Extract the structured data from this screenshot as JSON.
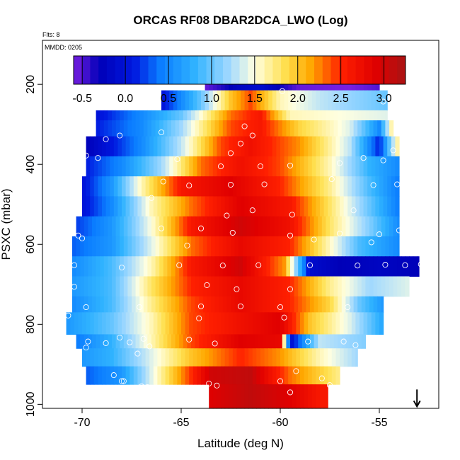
{
  "chart_data": {
    "type": "heatmap",
    "title": "ORCAS RF08 DBAR2DCA_LWO (Log)",
    "flights_note": "Flts: 8",
    "date_note": "MMDD: 0205",
    "xlabel": "Latitude (deg N)",
    "ylabel": "PSXC (mbar)",
    "xlim": [
      -72,
      -52
    ],
    "ylim": [
      1010,
      90
    ],
    "x_ticks": [
      -70,
      -65,
      -60,
      -55
    ],
    "x_tick_labels": [
      "-70",
      "-65",
      "-60",
      "-55"
    ],
    "y_ticks": [
      200,
      400,
      600,
      800,
      1000
    ],
    "y_tick_labels": [
      "200",
      "400",
      "600",
      "800",
      "1000"
    ],
    "colorbar": {
      "range": [
        -0.6,
        3.25
      ],
      "ticks": [
        -0.5,
        0.0,
        0.5,
        1.0,
        1.5,
        2.0,
        2.5,
        3.0
      ],
      "tick_labels": [
        "-0.5",
        "0.0",
        "0.5",
        "1.0",
        "1.5",
        "2.0",
        "2.5",
        "3.0"
      ],
      "gradient": [
        {
          "v": -0.6,
          "color": "#7a1fe0"
        },
        {
          "v": -0.3,
          "color": "#0000b8"
        },
        {
          "v": 0.1,
          "color": "#0018e0"
        },
        {
          "v": 0.4,
          "color": "#0a7cff"
        },
        {
          "v": 0.8,
          "color": "#2fb2ff"
        },
        {
          "v": 1.2,
          "color": "#9fd8ff"
        },
        {
          "v": 1.5,
          "color": "#ffffe0"
        },
        {
          "v": 1.85,
          "color": "#ffe050"
        },
        {
          "v": 2.15,
          "color": "#ffa800"
        },
        {
          "v": 2.5,
          "color": "#ff2000"
        },
        {
          "v": 2.9,
          "color": "#e00000"
        },
        {
          "v": 3.25,
          "color": "#a81414"
        }
      ]
    },
    "rows": [
      {
        "p0": 170,
        "p1": 215,
        "lat0": -63.8,
        "lat1": -55.0,
        "lat_pts": [
          -63.8,
          -62.0,
          -61.0,
          -59.0,
          -56.5,
          -55.0
        ],
        "vals": [
          -0.55,
          -0.2,
          -0.1,
          -0.55,
          -0.6,
          -0.5
        ]
      },
      {
        "p0": 215,
        "p1": 265,
        "lat0": -66.0,
        "lat1": -54.6,
        "lat_pts": [
          -66.0,
          -64.0,
          -62.5,
          -61.5,
          -60.0,
          -58.0,
          -54.6
        ],
        "vals": [
          0.0,
          1.0,
          2.0,
          2.4,
          1.6,
          1.3,
          1.0
        ]
      },
      {
        "p0": 265,
        "p1": 290,
        "lat0": -69.3,
        "lat1": -54.6,
        "lat_pts": [
          -69.3,
          -67.0,
          -65.0,
          -62.5,
          -61.0,
          -59.5,
          -54.6
        ],
        "vals": [
          0.0,
          0.5,
          1.0,
          2.3,
          2.6,
          1.6,
          1.4
        ]
      },
      {
        "p0": 290,
        "p1": 330,
        "lat0": -69.3,
        "lat1": -54.3,
        "lat_pts": [
          -69.3,
          -67.0,
          -65.0,
          -62.5,
          -61.0,
          -59.0,
          -56.5,
          -55.0,
          -54.3
        ],
        "vals": [
          0.1,
          0.5,
          1.2,
          2.4,
          2.6,
          1.9,
          1.4,
          0.5,
          1.8
        ]
      },
      {
        "p0": 330,
        "p1": 380,
        "lat0": -69.8,
        "lat1": -54.0,
        "lat_pts": [
          -69.8,
          -67.0,
          -65.0,
          -63.0,
          -61.5,
          -59.0,
          -56.5,
          -55.0,
          -54.0
        ],
        "vals": [
          -0.3,
          0.5,
          1.3,
          2.4,
          2.7,
          2.2,
          1.3,
          0.1,
          1.8
        ]
      },
      {
        "p0": 380,
        "p1": 430,
        "lat0": -69.8,
        "lat1": -54.0,
        "lat_pts": [
          -69.8,
          -68.0,
          -66.0,
          -64.0,
          -62.0,
          -60.0,
          -57.5,
          -55.5,
          -54.0
        ],
        "vals": [
          0.1,
          0.5,
          1.2,
          2.3,
          2.7,
          2.4,
          1.6,
          0.8,
          0.5
        ]
      },
      {
        "p0": 430,
        "p1": 480,
        "lat0": -70.0,
        "lat1": -54.0,
        "lat_pts": [
          -70.0,
          -68.5,
          -67.0,
          -65.0,
          -62.5,
          -60.0,
          -57.5,
          -55.5,
          -54.0
        ],
        "vals": [
          0.0,
          0.6,
          1.6,
          2.6,
          2.9,
          2.5,
          1.7,
          0.9,
          0.4
        ]
      },
      {
        "p0": 480,
        "p1": 530,
        "lat0": -70.0,
        "lat1": -54.0,
        "lat_pts": [
          -70.0,
          -68.5,
          -66.5,
          -64.5,
          -62.0,
          -59.5,
          -57.5,
          -55.5,
          -54.0
        ],
        "vals": [
          0.0,
          0.5,
          1.6,
          2.3,
          2.9,
          2.6,
          1.8,
          1.0,
          0.4
        ]
      },
      {
        "p0": 530,
        "p1": 580,
        "lat0": -70.3,
        "lat1": -54.0,
        "lat_pts": [
          -70.3,
          -68.5,
          -66.5,
          -64.5,
          -62.0,
          -59.5,
          -57.5,
          -55.5,
          -54.0
        ],
        "vals": [
          0.2,
          0.6,
          1.5,
          2.6,
          3.0,
          2.7,
          1.8,
          1.1,
          0.5
        ]
      },
      {
        "p0": 580,
        "p1": 630,
        "lat0": -70.5,
        "lat1": -54.0,
        "lat_pts": [
          -70.5,
          -68.5,
          -66.5,
          -64.5,
          -62.0,
          -59.5,
          -58.0,
          -56.0,
          -54.0
        ],
        "vals": [
          0.3,
          0.6,
          1.4,
          2.3,
          2.8,
          2.5,
          1.8,
          0.9,
          0.5
        ]
      },
      {
        "p0": 630,
        "p1": 680,
        "lat0": -70.5,
        "lat1": -53.0,
        "lat_pts": [
          -70.5,
          -68.5,
          -66.5,
          -64.5,
          -62.0,
          -59.8,
          -58.5,
          -57.0,
          -55.0,
          -53.0
        ],
        "vals": [
          0.5,
          0.9,
          1.6,
          2.6,
          3.0,
          2.2,
          -0.1,
          -0.3,
          -0.2,
          -0.3
        ]
      },
      {
        "p0": 680,
        "p1": 730,
        "lat0": -70.5,
        "lat1": -53.5,
        "lat_pts": [
          -70.5,
          -68.5,
          -66.5,
          -64.5,
          -62.0,
          -59.5,
          -57.5,
          -55.5,
          -53.5
        ],
        "vals": [
          0.6,
          0.9,
          1.8,
          2.5,
          2.8,
          2.5,
          1.7,
          1.2,
          1.4
        ]
      },
      {
        "p0": 730,
        "p1": 770,
        "lat0": -70.5,
        "lat1": -54.8,
        "lat_pts": [
          -70.5,
          -68.5,
          -66.5,
          -64.5,
          -62.0,
          -59.5,
          -57.5,
          -56.0,
          -54.8
        ],
        "vals": [
          0.5,
          0.9,
          1.7,
          2.4,
          2.8,
          2.5,
          1.9,
          1.0,
          0.6
        ]
      },
      {
        "p0": 770,
        "p1": 825,
        "lat0": -70.8,
        "lat1": -54.8,
        "lat_pts": [
          -70.8,
          -68.5,
          -66.5,
          -64.5,
          -62.0,
          -60.0,
          -58.5,
          -56.5,
          -54.8
        ],
        "vals": [
          0.6,
          1.0,
          1.6,
          2.4,
          2.7,
          2.9,
          2.0,
          1.4,
          0.7
        ]
      },
      {
        "p0": 825,
        "p1": 860,
        "lat0": -70.3,
        "lat1": -55.7,
        "lat_pts": [
          -70.3,
          -68.5,
          -66.5,
          -64.5,
          -62.0,
          -60.0,
          -59.5,
          -58.0,
          -55.7
        ],
        "vals": [
          0.4,
          0.8,
          1.6,
          2.4,
          2.9,
          2.8,
          -0.1,
          1.3,
          1.1
        ]
      },
      {
        "p0": 860,
        "p1": 905,
        "lat0": -70.0,
        "lat1": -56.1,
        "lat_pts": [
          -70.0,
          -68.5,
          -66.5,
          -64.5,
          -62.0,
          -60.0,
          -58.0,
          -56.1
        ],
        "vals": [
          0.6,
          0.8,
          1.4,
          2.0,
          2.5,
          2.2,
          1.6,
          1.2
        ]
      },
      {
        "p0": 905,
        "p1": 950,
        "lat0": -69.8,
        "lat1": -57.0,
        "lat_pts": [
          -69.8,
          -68.0,
          -66.5,
          -65.0,
          -63.5,
          -61.5,
          -59.5,
          -57.0
        ],
        "vals": [
          0.3,
          0.6,
          1.4,
          2.2,
          3.0,
          3.1,
          2.3,
          1.7
        ]
      },
      {
        "p0": 950,
        "p1": 1010,
        "lat0": -63.6,
        "lat1": -57.6,
        "lat_pts": [
          -63.6,
          -61.5,
          -59.5,
          -58.0,
          -57.6
        ],
        "vals": [
          2.9,
          3.1,
          2.9,
          2.6,
          2.6
        ]
      }
    ],
    "obs_points": [
      {
        "lat": -63.2,
        "p": 188
      },
      {
        "lat": -62.8,
        "p": 192
      },
      {
        "lat": -61.4,
        "p": 193
      },
      {
        "lat": -59.2,
        "p": 190
      },
      {
        "lat": -58.5,
        "p": 190
      },
      {
        "lat": -58.0,
        "p": 190
      },
      {
        "lat": -57.3,
        "p": 190
      },
      {
        "lat": -56.8,
        "p": 190
      },
      {
        "lat": -56.3,
        "p": 190
      },
      {
        "lat": -55.6,
        "p": 190
      },
      {
        "lat": -59.9,
        "p": 217
      },
      {
        "lat": -54.8,
        "p": 243
      },
      {
        "lat": -61.8,
        "p": 305
      },
      {
        "lat": -61.4,
        "p": 328
      },
      {
        "lat": -66.0,
        "p": 320
      },
      {
        "lat": -68.8,
        "p": 337
      },
      {
        "lat": -68.1,
        "p": 328
      },
      {
        "lat": -62.0,
        "p": 348
      },
      {
        "lat": -62.5,
        "p": 372
      },
      {
        "lat": -54.3,
        "p": 365
      },
      {
        "lat": -55.8,
        "p": 384
      },
      {
        "lat": -65.2,
        "p": 387
      },
      {
        "lat": -69.8,
        "p": 378
      },
      {
        "lat": -69.2,
        "p": 384
      },
      {
        "lat": -63.0,
        "p": 405
      },
      {
        "lat": -61.0,
        "p": 405
      },
      {
        "lat": -59.5,
        "p": 403
      },
      {
        "lat": -57.0,
        "p": 397
      },
      {
        "lat": -54.8,
        "p": 390
      },
      {
        "lat": -65.9,
        "p": 443
      },
      {
        "lat": -64.6,
        "p": 453
      },
      {
        "lat": -62.5,
        "p": 451
      },
      {
        "lat": -60.8,
        "p": 450
      },
      {
        "lat": -57.4,
        "p": 437
      },
      {
        "lat": -55.3,
        "p": 452
      },
      {
        "lat": -54.1,
        "p": 450
      },
      {
        "lat": -66.5,
        "p": 484
      },
      {
        "lat": -61.4,
        "p": 515
      },
      {
        "lat": -62.7,
        "p": 528
      },
      {
        "lat": -59.4,
        "p": 526
      },
      {
        "lat": -56.3,
        "p": 515
      },
      {
        "lat": -66.0,
        "p": 560
      },
      {
        "lat": -64.0,
        "p": 560
      },
      {
        "lat": -62.4,
        "p": 571
      },
      {
        "lat": -59.5,
        "p": 578
      },
      {
        "lat": -57.0,
        "p": 573
      },
      {
        "lat": -55.0,
        "p": 575
      },
      {
        "lat": -54.0,
        "p": 565
      },
      {
        "lat": -70.2,
        "p": 578
      },
      {
        "lat": -70.0,
        "p": 585
      },
      {
        "lat": -64.7,
        "p": 603
      },
      {
        "lat": -58.3,
        "p": 588
      },
      {
        "lat": -55.4,
        "p": 595
      },
      {
        "lat": -70.4,
        "p": 652
      },
      {
        "lat": -68.0,
        "p": 658
      },
      {
        "lat": -65.1,
        "p": 652
      },
      {
        "lat": -62.9,
        "p": 653
      },
      {
        "lat": -61.1,
        "p": 652
      },
      {
        "lat": -58.5,
        "p": 652
      },
      {
        "lat": -56.1,
        "p": 653
      },
      {
        "lat": -54.7,
        "p": 651
      },
      {
        "lat": -53.7,
        "p": 652
      },
      {
        "lat": -52.9,
        "p": 650
      },
      {
        "lat": -70.4,
        "p": 706
      },
      {
        "lat": -63.7,
        "p": 702
      },
      {
        "lat": -62.2,
        "p": 712
      },
      {
        "lat": -59.5,
        "p": 712
      },
      {
        "lat": -69.8,
        "p": 757
      },
      {
        "lat": -67.1,
        "p": 757
      },
      {
        "lat": -64.0,
        "p": 755
      },
      {
        "lat": -62.0,
        "p": 755
      },
      {
        "lat": -60.0,
        "p": 757
      },
      {
        "lat": -56.6,
        "p": 757
      },
      {
        "lat": -70.7,
        "p": 778
      },
      {
        "lat": -64.1,
        "p": 785
      },
      {
        "lat": -59.8,
        "p": 783
      },
      {
        "lat": -69.7,
        "p": 843
      },
      {
        "lat": -69.8,
        "p": 858
      },
      {
        "lat": -68.8,
        "p": 847
      },
      {
        "lat": -68.1,
        "p": 833
      },
      {
        "lat": -67.6,
        "p": 845
      },
      {
        "lat": -66.9,
        "p": 836
      },
      {
        "lat": -66.6,
        "p": 855
      },
      {
        "lat": -63.3,
        "p": 848
      },
      {
        "lat": -58.6,
        "p": 843
      },
      {
        "lat": -56.8,
        "p": 843
      },
      {
        "lat": -56.2,
        "p": 852
      },
      {
        "lat": -55.5,
        "p": 845
      },
      {
        "lat": -64.6,
        "p": 838
      },
      {
        "lat": -67.2,
        "p": 873
      },
      {
        "lat": -68.4,
        "p": 927
      },
      {
        "lat": -68.0,
        "p": 942
      },
      {
        "lat": -67.9,
        "p": 942
      },
      {
        "lat": -67.0,
        "p": 955
      },
      {
        "lat": -66.7,
        "p": 957
      },
      {
        "lat": -63.6,
        "p": 948
      },
      {
        "lat": -63.2,
        "p": 953
      },
      {
        "lat": -60.0,
        "p": 942
      },
      {
        "lat": -59.2,
        "p": 917
      },
      {
        "lat": -57.9,
        "p": 935
      },
      {
        "lat": -57.5,
        "p": 952
      },
      {
        "lat": -59.5,
        "p": 970
      }
    ],
    "arrow_marker": {
      "lat": -53.1,
      "p": 1000
    }
  }
}
